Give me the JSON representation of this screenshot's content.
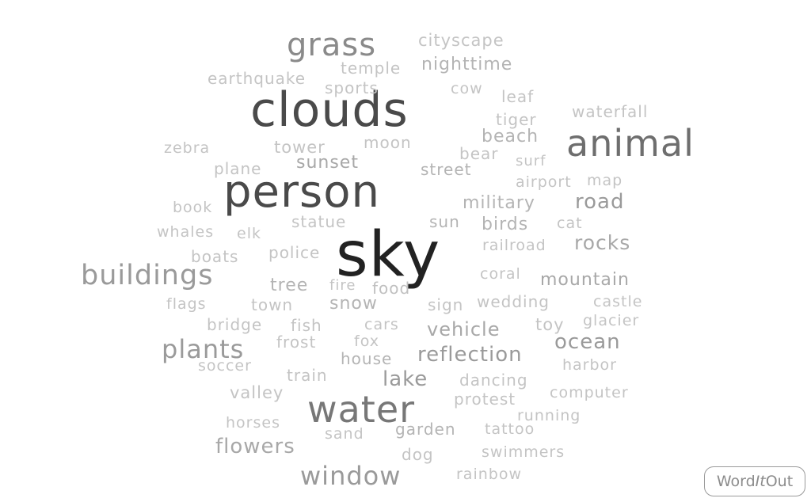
{
  "logo": {
    "part1": "Word",
    "part2": "It",
    "part3": "Out"
  },
  "words": [
    {
      "text": "sky",
      "color": "#222222"
    },
    {
      "text": "person",
      "color": "#4a4a4a"
    },
    {
      "text": "clouds",
      "color": "#4a4a4a"
    },
    {
      "text": "water",
      "color": "#777777"
    },
    {
      "text": "animal",
      "color": "#6e6e6e"
    },
    {
      "text": "grass",
      "color": "#8a8a8a"
    },
    {
      "text": "buildings",
      "color": "#9a9a9a"
    },
    {
      "text": "plants",
      "color": "#9a9a9a"
    },
    {
      "text": "window",
      "color": "#9a9a9a"
    },
    {
      "text": "reflection",
      "color": "#9a9a9a"
    },
    {
      "text": "ocean",
      "color": "#9a9a9a"
    },
    {
      "text": "road",
      "color": "#9a9a9a"
    },
    {
      "text": "lake",
      "color": "#9a9a9a"
    },
    {
      "text": "flowers",
      "color": "#a8a8a8"
    },
    {
      "text": "rocks",
      "color": "#a8a8a8"
    },
    {
      "text": "mountain",
      "color": "#a8a8a8"
    },
    {
      "text": "vehicle",
      "color": "#a8a8a8"
    },
    {
      "text": "sunset",
      "color": "#a8a8a8"
    },
    {
      "text": "nighttime",
      "color": "#b4b4b4"
    },
    {
      "text": "beach",
      "color": "#b4b4b4"
    },
    {
      "text": "military",
      "color": "#b4b4b4"
    },
    {
      "text": "birds",
      "color": "#b4b4b4"
    },
    {
      "text": "street",
      "color": "#b4b4b4"
    },
    {
      "text": "tree",
      "color": "#b4b4b4"
    },
    {
      "text": "snow",
      "color": "#b4b4b4"
    },
    {
      "text": "garden",
      "color": "#b4b4b4"
    },
    {
      "text": "sun",
      "color": "#b4b4b4"
    },
    {
      "text": "house",
      "color": "#b4b4b4"
    },
    {
      "text": "food",
      "color": "#c0c0c0"
    },
    {
      "text": "cityscape",
      "color": "#c4c4c4"
    },
    {
      "text": "temple",
      "color": "#c4c4c4"
    },
    {
      "text": "earthquake",
      "color": "#c4c4c4"
    },
    {
      "text": "sports",
      "color": "#c4c4c4"
    },
    {
      "text": "cow",
      "color": "#c4c4c4"
    },
    {
      "text": "leaf",
      "color": "#c4c4c4"
    },
    {
      "text": "waterfall",
      "color": "#c4c4c4"
    },
    {
      "text": "tiger",
      "color": "#c4c4c4"
    },
    {
      "text": "moon",
      "color": "#c4c4c4"
    },
    {
      "text": "tower",
      "color": "#c4c4c4"
    },
    {
      "text": "zebra",
      "color": "#c4c4c4"
    },
    {
      "text": "bear",
      "color": "#c4c4c4"
    },
    {
      "text": "surf",
      "color": "#c4c4c4"
    },
    {
      "text": "plane",
      "color": "#c4c4c4"
    },
    {
      "text": "map",
      "color": "#c4c4c4"
    },
    {
      "text": "airport",
      "color": "#c4c4c4"
    },
    {
      "text": "book",
      "color": "#c4c4c4"
    },
    {
      "text": "statue",
      "color": "#c4c4c4"
    },
    {
      "text": "cat",
      "color": "#c4c4c4"
    },
    {
      "text": "whales",
      "color": "#c4c4c4"
    },
    {
      "text": "elk",
      "color": "#c4c4c4"
    },
    {
      "text": "railroad",
      "color": "#c4c4c4"
    },
    {
      "text": "boats",
      "color": "#c4c4c4"
    },
    {
      "text": "police",
      "color": "#c4c4c4"
    },
    {
      "text": "coral",
      "color": "#c4c4c4"
    },
    {
      "text": "fire",
      "color": "#c4c4c4"
    },
    {
      "text": "flags",
      "color": "#c4c4c4"
    },
    {
      "text": "town",
      "color": "#c4c4c4"
    },
    {
      "text": "sign",
      "color": "#c4c4c4"
    },
    {
      "text": "wedding",
      "color": "#c4c4c4"
    },
    {
      "text": "castle",
      "color": "#c4c4c4"
    },
    {
      "text": "bridge",
      "color": "#c4c4c4"
    },
    {
      "text": "fish",
      "color": "#c4c4c4"
    },
    {
      "text": "cars",
      "color": "#c4c4c4"
    },
    {
      "text": "toy",
      "color": "#c4c4c4"
    },
    {
      "text": "glacier",
      "color": "#c4c4c4"
    },
    {
      "text": "frost",
      "color": "#c4c4c4"
    },
    {
      "text": "fox",
      "color": "#c4c4c4"
    },
    {
      "text": "soccer",
      "color": "#c4c4c4"
    },
    {
      "text": "harbor",
      "color": "#c4c4c4"
    },
    {
      "text": "train",
      "color": "#c4c4c4"
    },
    {
      "text": "dancing",
      "color": "#c4c4c4"
    },
    {
      "text": "valley",
      "color": "#c4c4c4"
    },
    {
      "text": "computer",
      "color": "#c4c4c4"
    },
    {
      "text": "protest",
      "color": "#c4c4c4"
    },
    {
      "text": "running",
      "color": "#c4c4c4"
    },
    {
      "text": "horses",
      "color": "#c4c4c4"
    },
    {
      "text": "sand",
      "color": "#c4c4c4"
    },
    {
      "text": "tattoo",
      "color": "#c4c4c4"
    },
    {
      "text": "dog",
      "color": "#c4c4c4"
    },
    {
      "text": "swimmers",
      "color": "#c4c4c4"
    },
    {
      "text": "rainbow",
      "color": "#c4c4c4"
    }
  ]
}
